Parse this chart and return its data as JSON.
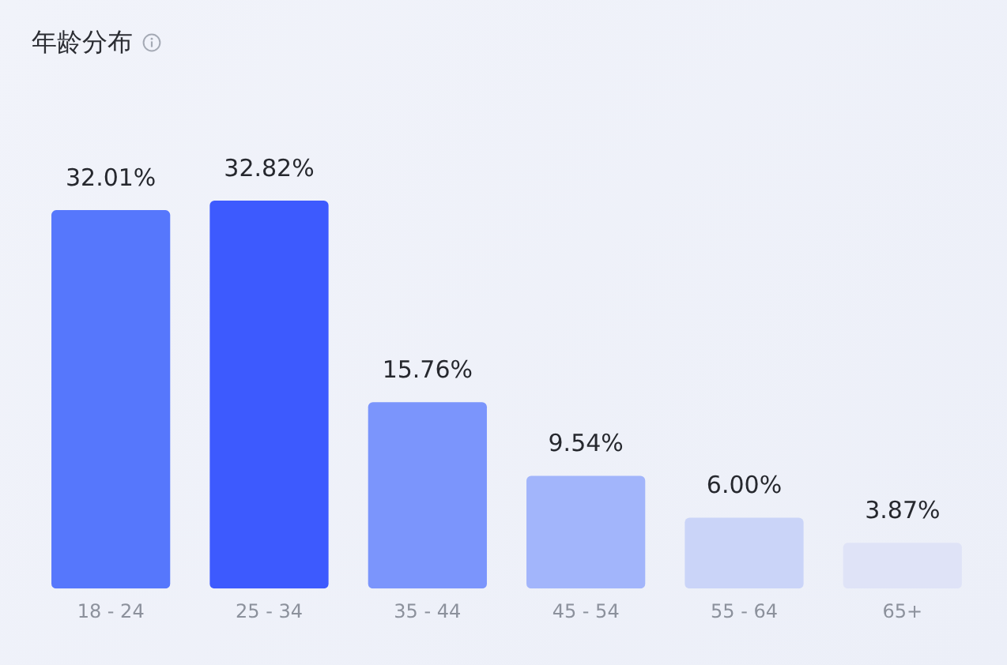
{
  "chart_data": {
    "type": "bar",
    "title": "年龄分布",
    "categories": [
      "18 - 24",
      "25 - 34",
      "35 - 44",
      "45 - 54",
      "55 - 64",
      "65+"
    ],
    "values": [
      32.01,
      32.82,
      15.76,
      9.54,
      6.0,
      3.87
    ],
    "colors": [
      "#5677fc",
      "#3d5afe",
      "#7b95fc",
      "#a2b5fb",
      "#cad4f8",
      "#dfe3f7"
    ],
    "value_labels": [
      "32.01%",
      "32.82%",
      "15.76%",
      "9.54%",
      "6.00%",
      "3.87%"
    ],
    "tick_labels": "x"
  }
}
